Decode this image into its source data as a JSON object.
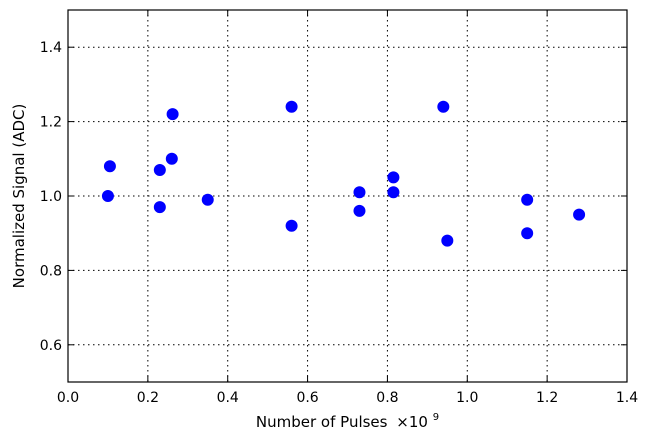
{
  "chart_data": {
    "type": "scatter",
    "xlabel": "Number of Pulses",
    "xlabel_multiplier": "×10",
    "xlabel_exponent": "9",
    "ylabel": "Normalized Signal (ADC)",
    "xlim": [
      0.0,
      1.4
    ],
    "ylim": [
      0.5,
      1.5
    ],
    "x_ticks": [
      0.0,
      0.2,
      0.4,
      0.6,
      0.8,
      1.0,
      1.2,
      1.4
    ],
    "x_tick_labels": [
      "0.0",
      "0.2",
      "0.4",
      "0.6",
      "0.8",
      "1.0",
      "1.2",
      "1.4"
    ],
    "y_ticks": [
      0.6,
      0.8,
      1.0,
      1.2,
      1.4
    ],
    "y_tick_labels": [
      "0.6",
      "0.8",
      "1.0",
      "1.2",
      "1.4"
    ],
    "grid": true,
    "marker_color": "#0000ff",
    "points": [
      {
        "x": 0.1,
        "y": 1.0
      },
      {
        "x": 0.105,
        "y": 1.08
      },
      {
        "x": 0.23,
        "y": 1.07
      },
      {
        "x": 0.23,
        "y": 0.97
      },
      {
        "x": 0.26,
        "y": 1.1
      },
      {
        "x": 0.262,
        "y": 1.22
      },
      {
        "x": 0.35,
        "y": 0.99
      },
      {
        "x": 0.56,
        "y": 1.24
      },
      {
        "x": 0.56,
        "y": 0.92
      },
      {
        "x": 0.73,
        "y": 1.01
      },
      {
        "x": 0.73,
        "y": 0.96
      },
      {
        "x": 0.815,
        "y": 1.05
      },
      {
        "x": 0.815,
        "y": 1.01
      },
      {
        "x": 0.94,
        "y": 1.24
      },
      {
        "x": 0.95,
        "y": 0.88
      },
      {
        "x": 1.15,
        "y": 0.99
      },
      {
        "x": 1.15,
        "y": 0.9
      },
      {
        "x": 1.28,
        "y": 0.95
      }
    ]
  }
}
